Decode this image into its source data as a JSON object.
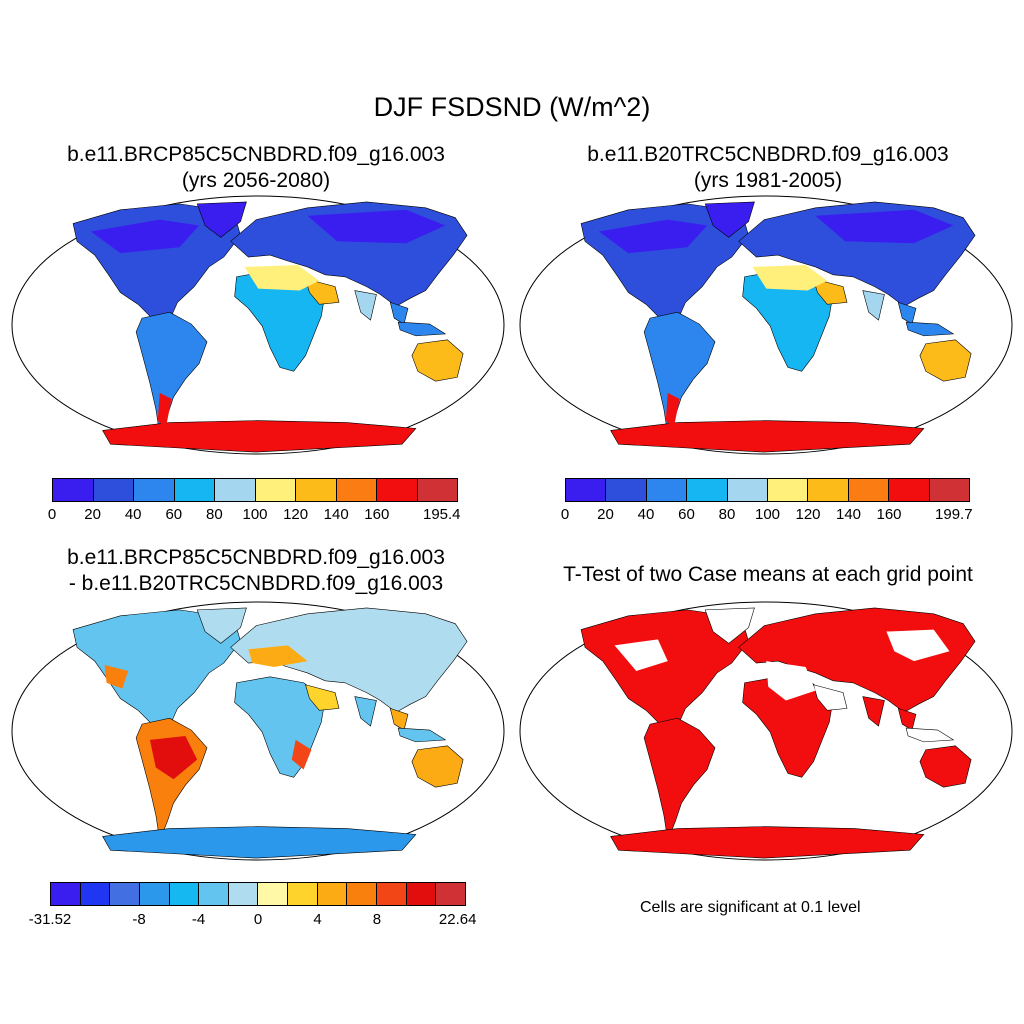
{
  "title": "DJF FSDSND (W/m^2)",
  "panels": [
    {
      "title_line1": "b.e11.BRCP85C5CNBDRD.f09_g16.003",
      "title_line2": "(yrs 2056-2080)",
      "colorbar": {
        "colors": [
          "#3a1ef0",
          "#2e4fdc",
          "#2c86ee",
          "#16b6f2",
          "#a4d6ef",
          "#fff07c",
          "#fdbb1a",
          "#fb7c12",
          "#f20e0e",
          "#cf3134"
        ],
        "labels": [
          "0",
          "20",
          "40",
          "60",
          "80",
          "100",
          "120",
          "140",
          "160",
          "195.4"
        ]
      }
    },
    {
      "title_line1": "b.e11.B20TRC5CNBDRD.f09_g16.003",
      "title_line2": "(yrs 1981-2005)",
      "colorbar": {
        "colors": [
          "#3a1ef0",
          "#2e4fdc",
          "#2c86ee",
          "#16b6f2",
          "#a4d6ef",
          "#fff07c",
          "#fdbb1a",
          "#fb7c12",
          "#f20e0e",
          "#cf3134"
        ],
        "labels": [
          "0",
          "20",
          "40",
          "60",
          "80",
          "100",
          "120",
          "140",
          "160",
          "199.7"
        ]
      }
    },
    {
      "title_line1": "b.e11.BRCP85C5CNBDRD.f09_g16.003",
      "title_line2": "- b.e11.B20TRC5CNBDRD.f09_g16.003",
      "colorbar": {
        "colors": [
          "#3a1ef0",
          "#2036f2",
          "#4270e2",
          "#2b98ec",
          "#16b8f2",
          "#62c4ef",
          "#b0dcef",
          "#fff8a6",
          "#fdd32c",
          "#fdab14",
          "#f9800d",
          "#f24616",
          "#e20e0e",
          "#cf3134"
        ],
        "labels": [
          "-31.52",
          "-8",
          "-4",
          "0",
          "4",
          "8",
          "22.64"
        ]
      }
    },
    {
      "title_line1": "T-Test of two Case means at each grid point",
      "note": "Cells are significant at 0.1 level"
    }
  ],
  "icons": {
    "projection": "robinson-world-map"
  }
}
